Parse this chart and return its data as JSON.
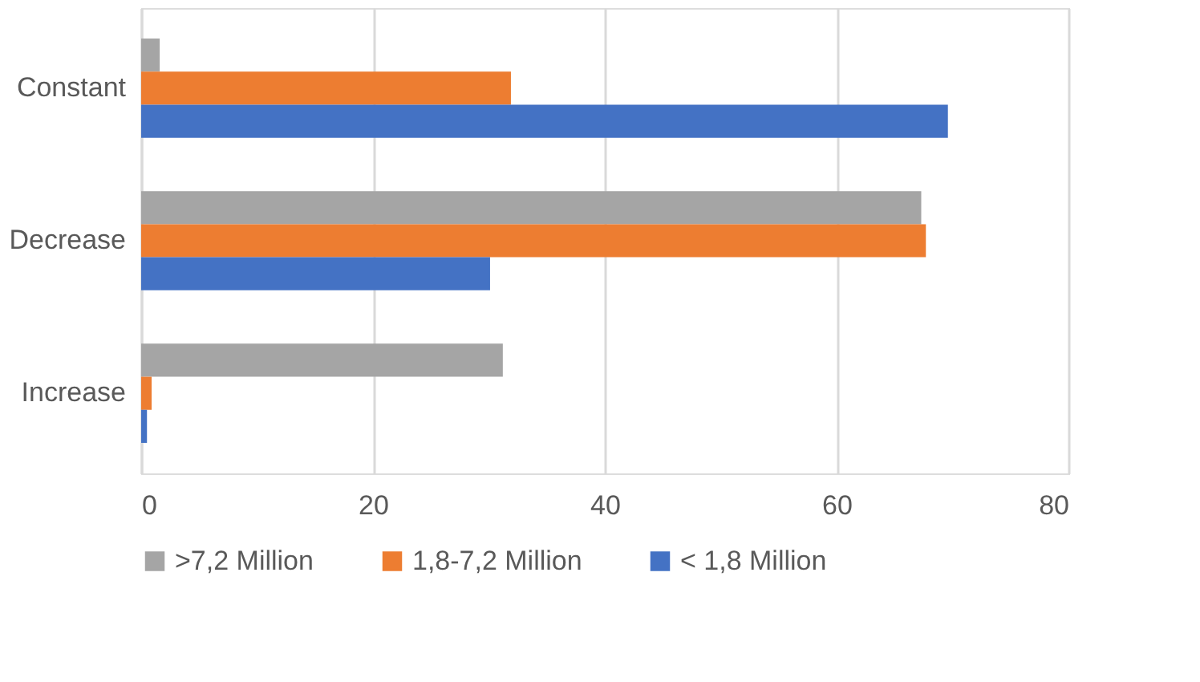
{
  "chart_data": {
    "type": "bar",
    "orientation": "horizontal",
    "categories": [
      "Constant",
      "Decrease",
      "Increase"
    ],
    "series": [
      {
        "name": ">7,2 Million",
        "color": "#a5a5a5",
        "values": [
          1.6,
          67.3,
          31.2
        ]
      },
      {
        "name": "1,8-7,2 Million",
        "color": "#ed7d31",
        "values": [
          31.9,
          67.7,
          0.9
        ]
      },
      {
        "name": "< 1,8 Million",
        "color": "#4472c4",
        "values": [
          69.6,
          30.1,
          0.5
        ]
      }
    ],
    "xlim": [
      0,
      80
    ],
    "xticks": [
      0,
      20,
      40,
      60,
      80
    ],
    "grid": "x",
    "legend": "bottom"
  }
}
